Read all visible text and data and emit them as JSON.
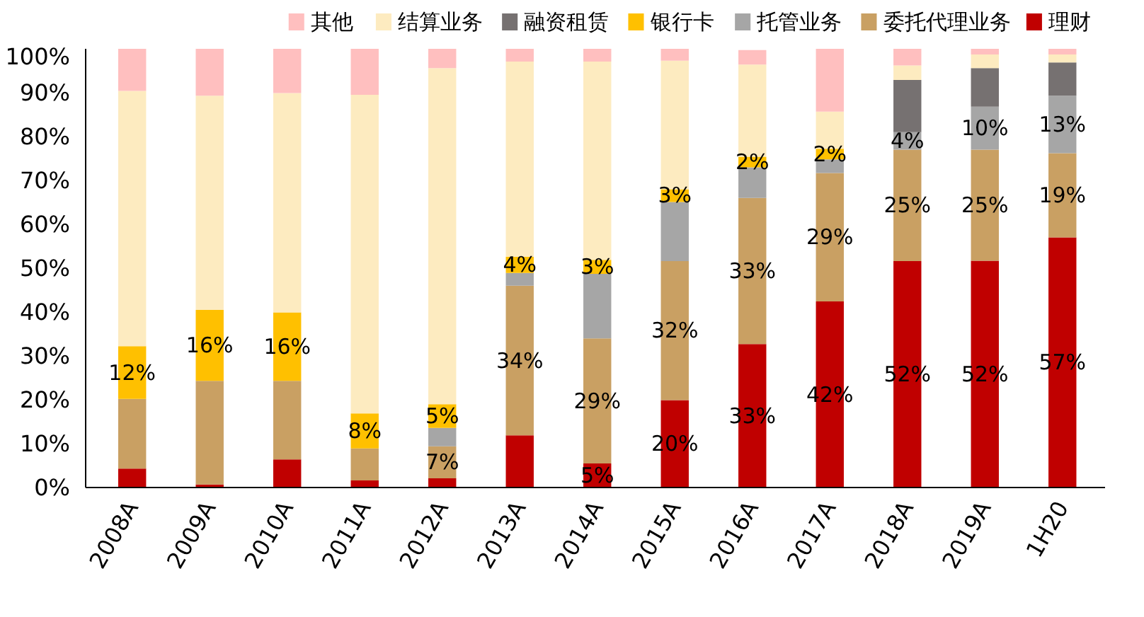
{
  "chart_data": {
    "type": "bar",
    "stacked": true,
    "categories": [
      "2008A",
      "2009A",
      "2010A",
      "2011A",
      "2012A",
      "2013A",
      "2014A",
      "2015A",
      "2016A",
      "2017A",
      "2018A",
      "2019A",
      "1H20"
    ],
    "ylim": [
      0,
      100
    ],
    "yticks": [
      {
        "value": 0,
        "label": "0%"
      },
      {
        "value": 10,
        "label": "10%"
      },
      {
        "value": 20,
        "label": "20%"
      },
      {
        "value": 30,
        "label": "30%"
      },
      {
        "value": 40,
        "label": "40%"
      },
      {
        "value": 50,
        "label": "50%"
      },
      {
        "value": 60,
        "label": "60%"
      },
      {
        "value": 70,
        "label": "70%"
      },
      {
        "value": 80,
        "label": "80%"
      },
      {
        "value": 90,
        "label": "90%"
      },
      {
        "value": 100,
        "label": "100%"
      }
    ],
    "grid": false,
    "legend": "top",
    "series": [
      {
        "name": "理财",
        "color": "#c00000",
        "values": [
          4.3,
          0.7,
          6.4,
          1.6,
          2.1,
          11.9,
          5.5,
          19.9,
          32.7,
          42.4,
          51.6,
          51.7,
          57
        ],
        "value_labels": [
          null,
          null,
          null,
          null,
          null,
          null,
          "5%",
          "20%",
          "33%",
          "42%",
          "52%",
          "52%",
          "57%"
        ]
      },
      {
        "name": "委托代理业务",
        "color": "#c9a063",
        "values": [
          15.9,
          23.6,
          17.9,
          7.3,
          7.3,
          34.1,
          28.5,
          31.7,
          33.3,
          29.3,
          25.4,
          25.3,
          19.2
        ],
        "value_labels": [
          null,
          null,
          null,
          null,
          "7%",
          "34%",
          "29%",
          "32%",
          "33%",
          "29%",
          "25%",
          "25%",
          "19%"
        ]
      },
      {
        "name": "托管业务",
        "color": "#a6a6a6",
        "values": [
          0,
          0,
          0,
          0,
          4.2,
          2.9,
          14.7,
          13.5,
          7,
          3.1,
          4,
          9.8,
          13.1
        ],
        "value_labels": [
          null,
          null,
          null,
          null,
          null,
          null,
          null,
          null,
          null,
          null,
          "4%",
          "10%",
          "13%"
        ]
      },
      {
        "name": "银行卡",
        "color": "#ffc000",
        "values": [
          12,
          16.2,
          15.6,
          8,
          5.4,
          3.7,
          3.2,
          2.9,
          2.4,
          2.4,
          0,
          0,
          0
        ],
        "value_labels": [
          "12%",
          "16%",
          "16%",
          "8%",
          "5%",
          "4%",
          "3%",
          "3%",
          "2%",
          "2%",
          null,
          null,
          null
        ]
      },
      {
        "name": "融资租赁",
        "color": "#767171",
        "values": [
          0,
          0,
          0,
          0,
          0,
          0,
          0,
          0,
          0,
          0,
          11.9,
          8.8,
          7.6
        ],
        "value_labels": [
          null,
          null,
          null,
          null,
          null,
          null,
          null,
          null,
          null,
          null,
          null,
          null,
          null
        ]
      },
      {
        "name": "结算业务",
        "color": "#fdebc0",
        "values": [
          58.2,
          48.8,
          50,
          72.6,
          76.6,
          44.5,
          45.2,
          29.3,
          21,
          8.5,
          3.3,
          3.1,
          1.8
        ],
        "value_labels": [
          null,
          null,
          null,
          null,
          null,
          null,
          null,
          null,
          null,
          null,
          null,
          null,
          null
        ]
      },
      {
        "name": "其他",
        "color": "#ffbfbf",
        "values": [
          9.6,
          10.7,
          10.1,
          10.5,
          4.4,
          2.9,
          2.9,
          2.7,
          3.3,
          14.3,
          3.8,
          1.3,
          1.3
        ],
        "value_labels": [
          null,
          null,
          null,
          null,
          null,
          null,
          null,
          null,
          null,
          null,
          null,
          null,
          null
        ]
      }
    ]
  }
}
